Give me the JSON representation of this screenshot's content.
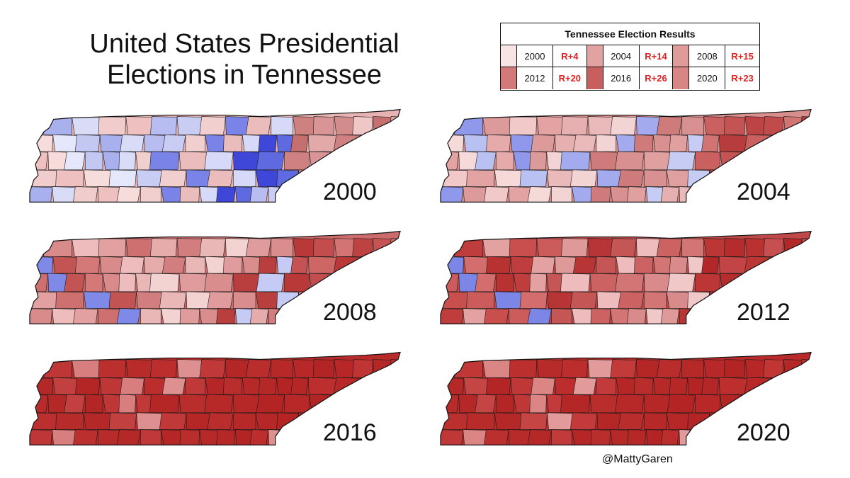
{
  "header": {
    "title_line1": "United States Presidential",
    "title_line2": "Elections in Tennessee"
  },
  "legend": {
    "title": "Tennessee Election Results",
    "rows": [
      {
        "year": "2000",
        "margin": "R+4",
        "color": "#f8e4e4"
      },
      {
        "year": "2004",
        "margin": "R+14",
        "color": "#e3a2a2"
      },
      {
        "year": "2008",
        "margin": "R+15",
        "color": "#df9a9a"
      },
      {
        "year": "2012",
        "margin": "R+20",
        "color": "#d27a7a"
      },
      {
        "year": "2016",
        "margin": "R+26",
        "color": "#c95e5e"
      },
      {
        "year": "2020",
        "margin": "R+23",
        "color": "#d88585"
      }
    ]
  },
  "maps": [
    {
      "year": "2000",
      "base": "#e7b2b2",
      "west_palette": [
        "#c3c8f2",
        "#f1cccc",
        "#e5e8fa",
        "#d9dcf7",
        "#f7dcdc",
        "#a9b0ee",
        "#eec0c0"
      ],
      "mid_palette": [
        "#7a84e8",
        "#b7bdf1",
        "#d6d9f7",
        "#f2cfcf",
        "#5f6ae0",
        "#ebbcbc",
        "#c9cdf4",
        "#3f47d8"
      ],
      "east_palette": [
        "#d99595",
        "#cf8080",
        "#e3a9a9",
        "#c56f6f",
        "#efc7c7",
        "#d38c8c"
      ]
    },
    {
      "year": "2004",
      "base": "#d98e8e",
      "west_palette": [
        "#e7aaaa",
        "#f2c9c9",
        "#b9c0f2",
        "#dd9a9a",
        "#f6dada",
        "#8f98ea",
        "#e3a3a3"
      ],
      "mid_palette": [
        "#a3abee",
        "#e6b0b0",
        "#d99090",
        "#f3d4d4",
        "#c7ccf5",
        "#cf7b7b",
        "#eab9b9",
        "#e0a0a0"
      ],
      "east_palette": [
        "#c45454",
        "#cb6060",
        "#b73d3d",
        "#d37474",
        "#c14a4a",
        "#bd4444"
      ]
    },
    {
      "year": "2008",
      "base": "#cc6b6b",
      "west_palette": [
        "#d47878",
        "#e3a0a0",
        "#c25454",
        "#eebcbc",
        "#7f8ae8",
        "#d98a8a",
        "#cf7070"
      ],
      "mid_palette": [
        "#f3d2d2",
        "#e6acac",
        "#d98d8d",
        "#eab7b7",
        "#c5cbf5",
        "#e09c9c",
        "#d27e7e",
        "#b93e3e"
      ],
      "east_palette": [
        "#c34c4c",
        "#b93939",
        "#cf6666",
        "#c65353",
        "#bd4343",
        "#d47373"
      ]
    },
    {
      "year": "2012",
      "base": "#c04848",
      "west_palette": [
        "#b93232",
        "#c94f4f",
        "#d46e6e",
        "#e3a1a1",
        "#7b86e6",
        "#bf3d3d",
        "#cc5c5c"
      ],
      "mid_palette": [
        "#eebcbc",
        "#e09999",
        "#d37575",
        "#c55656",
        "#f0c8c8",
        "#cc6262",
        "#b83535",
        "#d98a8a"
      ],
      "east_palette": [
        "#b52c2c",
        "#bc3636",
        "#c24444",
        "#b22828",
        "#c84f4f",
        "#b93131"
      ]
    },
    {
      "year": "2016",
      "base": "#b92a2a",
      "west_palette": [
        "#b42626",
        "#bb2f2f",
        "#c34040",
        "#d97e7e",
        "#b52828",
        "#bf3636",
        "#b82b2b"
      ],
      "mid_palette": [
        "#b52626",
        "#bc2e2e",
        "#b72929",
        "#c13838",
        "#b42424",
        "#ba2d2d",
        "#de9090",
        "#b62828"
      ],
      "east_palette": [
        "#b32424",
        "#b82828",
        "#bd2f2f",
        "#b52626",
        "#c03434",
        "#b72727"
      ]
    },
    {
      "year": "2020",
      "base": "#b92a2a",
      "west_palette": [
        "#b42626",
        "#bb2f2f",
        "#c54444",
        "#db8585",
        "#b52828",
        "#bf3737",
        "#b82b2b"
      ],
      "mid_palette": [
        "#b52626",
        "#bc2e2e",
        "#b72929",
        "#c23a3a",
        "#b42424",
        "#ba2d2d",
        "#e29a9a",
        "#b62828"
      ],
      "east_palette": [
        "#b32424",
        "#b82828",
        "#bd2f2f",
        "#b52626",
        "#c13535",
        "#b72727"
      ]
    }
  ],
  "credit": "@MattyGaren"
}
